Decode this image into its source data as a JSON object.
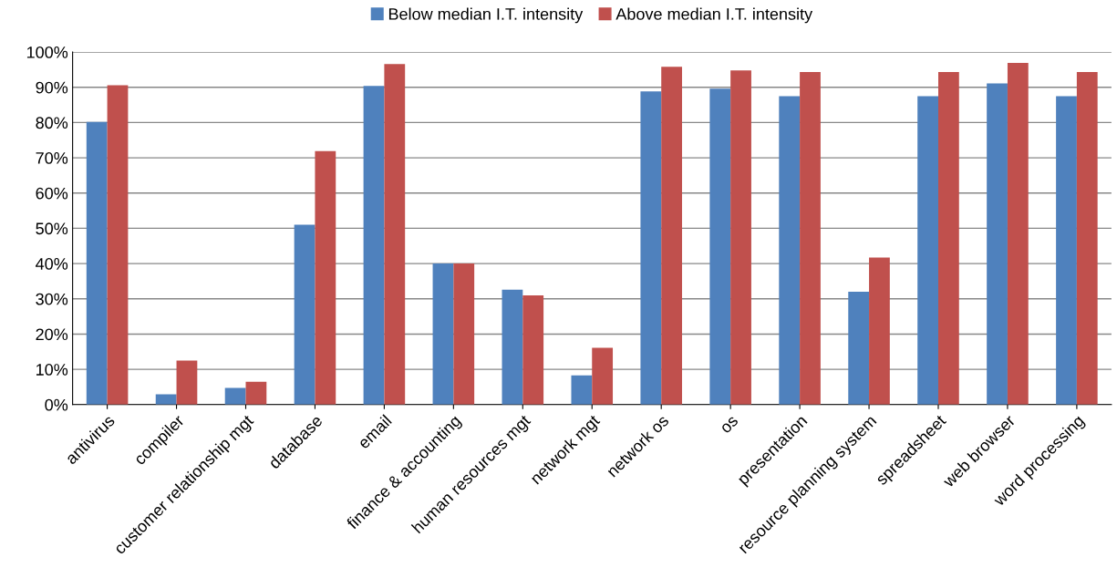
{
  "chart_data": {
    "type": "bar",
    "categories": [
      "antivirus",
      "compiler",
      "customer relationship mgt",
      "database",
      "email",
      "finance & accounting",
      "human resources mgt",
      "network mgt",
      "network os",
      "os",
      "presentation",
      "resource planning system",
      "spreadsheet",
      "web browser",
      "word processing"
    ],
    "series": [
      {
        "name": "Below median I.T. intensity",
        "color": "#4f81bd",
        "values": [
          80.2,
          2.9,
          4.7,
          51,
          90.4,
          40,
          32.6,
          8.3,
          88.8,
          89.6,
          87.5,
          32,
          87.5,
          91.1,
          87.5
        ]
      },
      {
        "name": "Above median I.T. intensity",
        "color": "#c0504d",
        "values": [
          90.6,
          12.5,
          6.5,
          71.9,
          96.6,
          40,
          31,
          16.1,
          95.8,
          94.8,
          94.3,
          41.7,
          94.3,
          96.9,
          94.3
        ]
      }
    ],
    "ylim": [
      0,
      100
    ],
    "yticks": [
      {
        "value": 0,
        "label": "0%"
      },
      {
        "value": 10,
        "label": "10%"
      },
      {
        "value": 20,
        "label": "20%"
      },
      {
        "value": 30,
        "label": "30%"
      },
      {
        "value": 40,
        "label": "40%"
      },
      {
        "value": 50,
        "label": "50%"
      },
      {
        "value": 60,
        "label": "60%"
      },
      {
        "value": 70,
        "label": "70%"
      },
      {
        "value": 80,
        "label": "80%"
      },
      {
        "value": 90,
        "label": "90%"
      },
      {
        "value": 100,
        "label": "100%"
      }
    ],
    "grid": "y",
    "legend": "top"
  }
}
